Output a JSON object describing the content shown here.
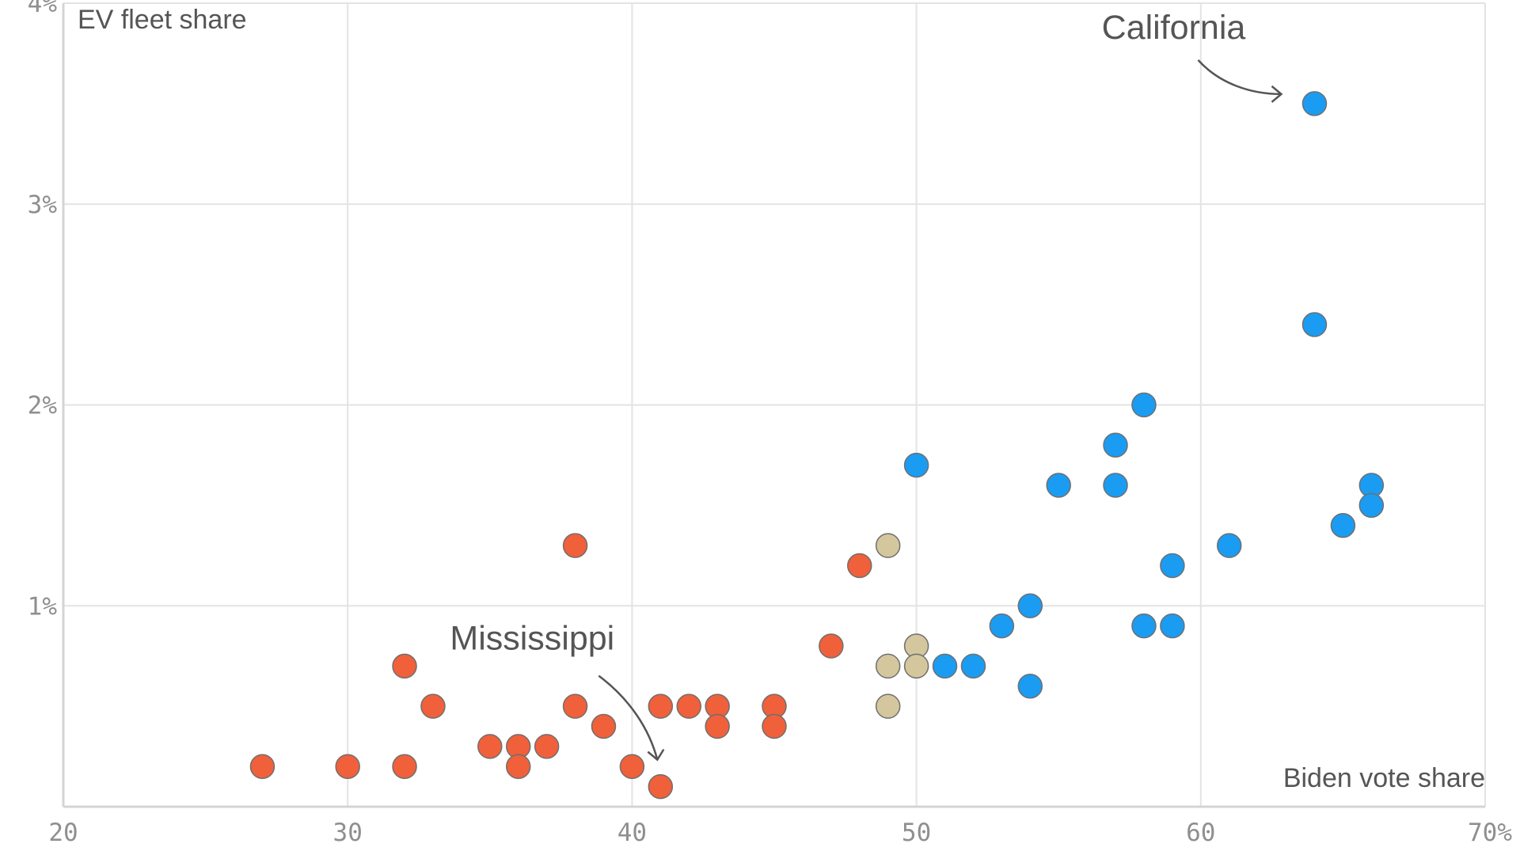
{
  "colors": {
    "republican": "#f0603a",
    "swing": "#d4c79d",
    "democrat": "#1a9cf3",
    "grid": "#e3e3e3",
    "text": "#555555",
    "tick": "#8f8f8f"
  },
  "chart_data": {
    "type": "scatter",
    "xlabel": "Biden vote share",
    "ylabel": "EV fleet share",
    "xlim": [
      20,
      70
    ],
    "ylim": [
      0,
      4
    ],
    "x_ticks": [
      "20",
      "30",
      "40",
      "50",
      "60",
      "70%"
    ],
    "y_ticks": [
      "1%",
      "2%",
      "3%",
      "4%"
    ],
    "grid": true,
    "annotations": [
      {
        "text": "California",
        "x": 64,
        "y": 3.5
      },
      {
        "text": "Mississippi",
        "x": 41,
        "y": 0.1
      }
    ],
    "series": [
      {
        "group": "republican",
        "points": [
          [
            27,
            0.2
          ],
          [
            30,
            0.2
          ],
          [
            32,
            0.2
          ],
          [
            32,
            0.7
          ],
          [
            33,
            0.5
          ],
          [
            35,
            0.3
          ],
          [
            36,
            0.3
          ],
          [
            36,
            0.2
          ],
          [
            37,
            0.3
          ],
          [
            38,
            0.5
          ],
          [
            38,
            1.3
          ],
          [
            39,
            0.4
          ],
          [
            40,
            0.2
          ],
          [
            41,
            0.1
          ],
          [
            41,
            0.5
          ],
          [
            42,
            0.5
          ],
          [
            43,
            0.5
          ],
          [
            43,
            0.4
          ],
          [
            45,
            0.5
          ],
          [
            45,
            0.4
          ],
          [
            47,
            0.8
          ],
          [
            48,
            1.2
          ]
        ]
      },
      {
        "group": "swing",
        "points": [
          [
            49,
            1.3
          ],
          [
            49,
            0.7
          ],
          [
            49,
            0.5
          ],
          [
            50,
            0.8
          ],
          [
            50,
            0.7
          ]
        ]
      },
      {
        "group": "democrat",
        "points": [
          [
            50,
            1.7
          ],
          [
            51,
            0.7
          ],
          [
            52,
            0.7
          ],
          [
            53,
            0.9
          ],
          [
            54,
            1.0
          ],
          [
            54,
            0.6
          ],
          [
            55,
            1.6
          ],
          [
            57,
            1.8
          ],
          [
            57,
            1.6
          ],
          [
            58,
            2.0
          ],
          [
            58,
            0.9
          ],
          [
            59,
            1.2
          ],
          [
            59,
            0.9
          ],
          [
            61,
            1.3
          ],
          [
            64,
            3.5
          ],
          [
            64,
            2.4
          ],
          [
            65,
            1.4
          ],
          [
            66,
            1.6
          ],
          [
            66,
            1.5
          ]
        ]
      }
    ]
  }
}
